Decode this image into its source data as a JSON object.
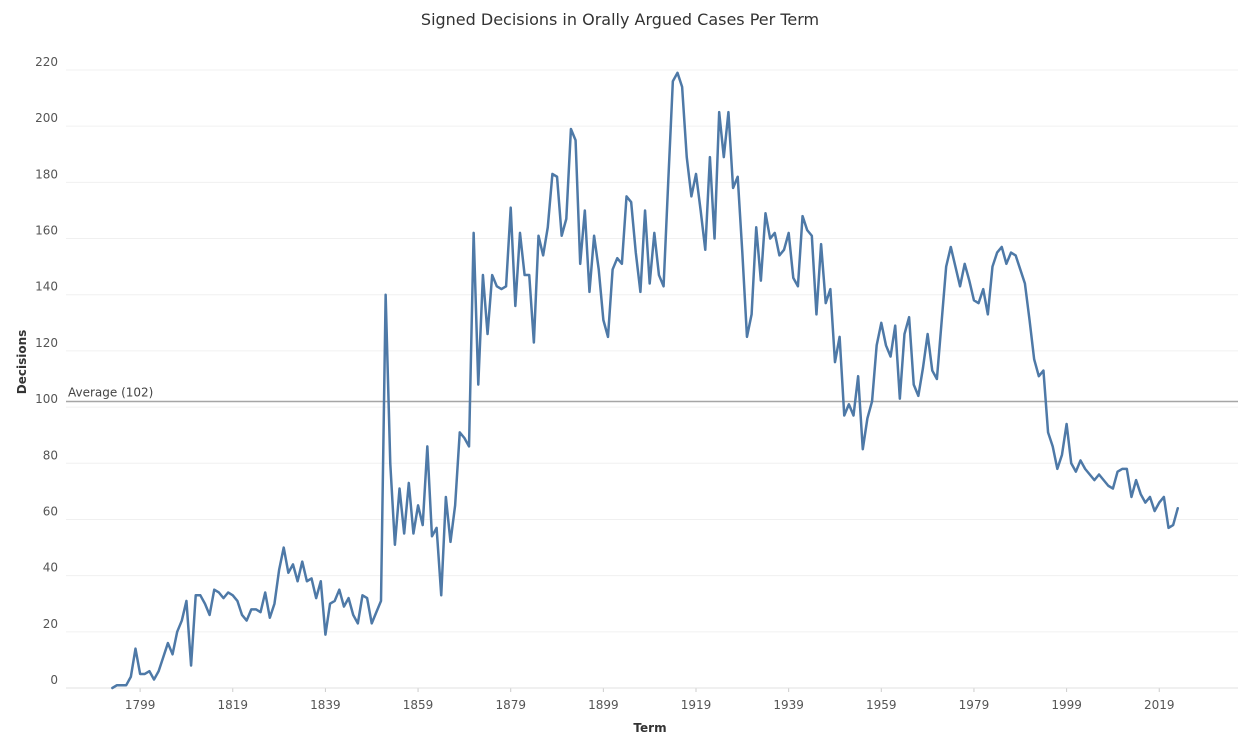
{
  "chart_data": {
    "type": "line",
    "title": "Signed Decisions in Orally Argued Cases Per Term",
    "xlabel": "Term",
    "ylabel": "Decisions",
    "xlim": [
      1783,
      2036
    ],
    "ylim": [
      0,
      220
    ],
    "x_ticks": [
      1799,
      1819,
      1839,
      1859,
      1879,
      1899,
      1919,
      1939,
      1959,
      1979,
      1999,
      2019
    ],
    "y_ticks": [
      0,
      20,
      40,
      60,
      80,
      100,
      120,
      140,
      160,
      180,
      200,
      220
    ],
    "grid": true,
    "reference_line": {
      "label": "Average (102)",
      "value": 102,
      "color": "#a6a6a6"
    },
    "series": [
      {
        "color": "#4e79a7",
        "points": [
          [
            1793,
            0
          ],
          [
            1794,
            1
          ],
          [
            1795,
            1
          ],
          [
            1796,
            1
          ],
          [
            1797,
            4
          ],
          [
            1798,
            14
          ],
          [
            1799,
            5
          ],
          [
            1800,
            5
          ],
          [
            1801,
            6
          ],
          [
            1802,
            3
          ],
          [
            1803,
            6
          ],
          [
            1804,
            11
          ],
          [
            1805,
            16
          ],
          [
            1806,
            12
          ],
          [
            1807,
            20
          ],
          [
            1808,
            24
          ],
          [
            1809,
            31
          ],
          [
            1810,
            8
          ],
          [
            1811,
            33
          ],
          [
            1812,
            33
          ],
          [
            1813,
            30
          ],
          [
            1814,
            26
          ],
          [
            1815,
            35
          ],
          [
            1816,
            34
          ],
          [
            1817,
            32
          ],
          [
            1818,
            34
          ],
          [
            1819,
            33
          ],
          [
            1820,
            31
          ],
          [
            1821,
            26
          ],
          [
            1822,
            24
          ],
          [
            1823,
            28
          ],
          [
            1824,
            28
          ],
          [
            1825,
            27
          ],
          [
            1826,
            34
          ],
          [
            1827,
            25
          ],
          [
            1828,
            30
          ],
          [
            1829,
            42
          ],
          [
            1830,
            50
          ],
          [
            1831,
            41
          ],
          [
            1832,
            44
          ],
          [
            1833,
            38
          ],
          [
            1834,
            45
          ],
          [
            1835,
            38
          ],
          [
            1836,
            39
          ],
          [
            1837,
            32
          ],
          [
            1838,
            38
          ],
          [
            1839,
            19
          ],
          [
            1840,
            30
          ],
          [
            1841,
            31
          ],
          [
            1842,
            35
          ],
          [
            1843,
            29
          ],
          [
            1844,
            32
          ],
          [
            1845,
            26
          ],
          [
            1846,
            23
          ],
          [
            1847,
            33
          ],
          [
            1848,
            32
          ],
          [
            1849,
            23
          ],
          [
            1850,
            27
          ],
          [
            1851,
            31
          ],
          [
            1852,
            140
          ],
          [
            1853,
            80
          ],
          [
            1854,
            51
          ],
          [
            1855,
            71
          ],
          [
            1856,
            55
          ],
          [
            1857,
            73
          ],
          [
            1858,
            55
          ],
          [
            1859,
            65
          ],
          [
            1860,
            58
          ],
          [
            1861,
            86
          ],
          [
            1862,
            54
          ],
          [
            1863,
            57
          ],
          [
            1864,
            33
          ],
          [
            1865,
            68
          ],
          [
            1866,
            52
          ],
          [
            1867,
            65
          ],
          [
            1868,
            91
          ],
          [
            1869,
            89
          ],
          [
            1870,
            86
          ],
          [
            1871,
            162
          ],
          [
            1872,
            108
          ],
          [
            1873,
            147
          ],
          [
            1874,
            126
          ],
          [
            1875,
            147
          ],
          [
            1876,
            143
          ],
          [
            1877,
            142
          ],
          [
            1878,
            143
          ],
          [
            1879,
            171
          ],
          [
            1880,
            136
          ],
          [
            1881,
            162
          ],
          [
            1882,
            147
          ],
          [
            1883,
            147
          ],
          [
            1884,
            123
          ],
          [
            1885,
            161
          ],
          [
            1886,
            154
          ],
          [
            1887,
            164
          ],
          [
            1888,
            183
          ],
          [
            1889,
            182
          ],
          [
            1890,
            161
          ],
          [
            1891,
            167
          ],
          [
            1892,
            199
          ],
          [
            1893,
            195
          ],
          [
            1894,
            151
          ],
          [
            1895,
            170
          ],
          [
            1896,
            141
          ],
          [
            1897,
            161
          ],
          [
            1898,
            149
          ],
          [
            1899,
            131
          ],
          [
            1900,
            125
          ],
          [
            1901,
            149
          ],
          [
            1902,
            153
          ],
          [
            1903,
            151
          ],
          [
            1904,
            175
          ],
          [
            1905,
            173
          ],
          [
            1906,
            155
          ],
          [
            1907,
            141
          ],
          [
            1908,
            170
          ],
          [
            1909,
            144
          ],
          [
            1910,
            162
          ],
          [
            1911,
            147
          ],
          [
            1912,
            143
          ],
          [
            1913,
            180
          ],
          [
            1914,
            216
          ],
          [
            1915,
            219
          ],
          [
            1916,
            214
          ],
          [
            1917,
            189
          ],
          [
            1918,
            175
          ],
          [
            1919,
            183
          ],
          [
            1920,
            170
          ],
          [
            1921,
            156
          ],
          [
            1922,
            189
          ],
          [
            1923,
            160
          ],
          [
            1924,
            205
          ],
          [
            1925,
            189
          ],
          [
            1926,
            205
          ],
          [
            1927,
            178
          ],
          [
            1928,
            182
          ],
          [
            1929,
            155
          ],
          [
            1930,
            125
          ],
          [
            1931,
            133
          ],
          [
            1932,
            164
          ],
          [
            1933,
            145
          ],
          [
            1934,
            169
          ],
          [
            1935,
            160
          ],
          [
            1936,
            162
          ],
          [
            1937,
            154
          ],
          [
            1938,
            156
          ],
          [
            1939,
            162
          ],
          [
            1940,
            146
          ],
          [
            1941,
            143
          ],
          [
            1942,
            168
          ],
          [
            1943,
            163
          ],
          [
            1944,
            161
          ],
          [
            1945,
            133
          ],
          [
            1946,
            158
          ],
          [
            1947,
            137
          ],
          [
            1948,
            142
          ],
          [
            1949,
            116
          ],
          [
            1950,
            125
          ],
          [
            1951,
            97
          ],
          [
            1952,
            101
          ],
          [
            1953,
            97
          ],
          [
            1954,
            111
          ],
          [
            1955,
            85
          ],
          [
            1956,
            96
          ],
          [
            1957,
            102
          ],
          [
            1958,
            122
          ],
          [
            1959,
            130
          ],
          [
            1960,
            122
          ],
          [
            1961,
            118
          ],
          [
            1962,
            129
          ],
          [
            1963,
            103
          ],
          [
            1964,
            126
          ],
          [
            1965,
            132
          ],
          [
            1966,
            108
          ],
          [
            1967,
            104
          ],
          [
            1968,
            114
          ],
          [
            1969,
            126
          ],
          [
            1970,
            113
          ],
          [
            1971,
            110
          ],
          [
            1972,
            130
          ],
          [
            1973,
            150
          ],
          [
            1974,
            157
          ],
          [
            1975,
            150
          ],
          [
            1976,
            143
          ],
          [
            1977,
            151
          ],
          [
            1978,
            145
          ],
          [
            1979,
            138
          ],
          [
            1980,
            137
          ],
          [
            1981,
            142
          ],
          [
            1982,
            133
          ],
          [
            1983,
            150
          ],
          [
            1984,
            155
          ],
          [
            1985,
            157
          ],
          [
            1986,
            151
          ],
          [
            1987,
            155
          ],
          [
            1988,
            154
          ],
          [
            1989,
            149
          ],
          [
            1990,
            144
          ],
          [
            1991,
            131
          ],
          [
            1992,
            117
          ],
          [
            1993,
            111
          ],
          [
            1994,
            113
          ],
          [
            1995,
            91
          ],
          [
            1996,
            86
          ],
          [
            1997,
            78
          ],
          [
            1998,
            83
          ],
          [
            1999,
            94
          ],
          [
            2000,
            80
          ],
          [
            2001,
            77
          ],
          [
            2002,
            81
          ],
          [
            2003,
            78
          ],
          [
            2004,
            76
          ],
          [
            2005,
            74
          ],
          [
            2006,
            76
          ],
          [
            2007,
            74
          ],
          [
            2008,
            72
          ],
          [
            2009,
            71
          ],
          [
            2010,
            77
          ],
          [
            2011,
            78
          ],
          [
            2012,
            78
          ],
          [
            2013,
            68
          ],
          [
            2014,
            74
          ],
          [
            2015,
            69
          ],
          [
            2016,
            66
          ],
          [
            2017,
            68
          ],
          [
            2018,
            63
          ],
          [
            2019,
            66
          ],
          [
            2020,
            68
          ],
          [
            2021,
            57
          ],
          [
            2022,
            58
          ],
          [
            2023,
            64
          ]
        ]
      }
    ]
  }
}
